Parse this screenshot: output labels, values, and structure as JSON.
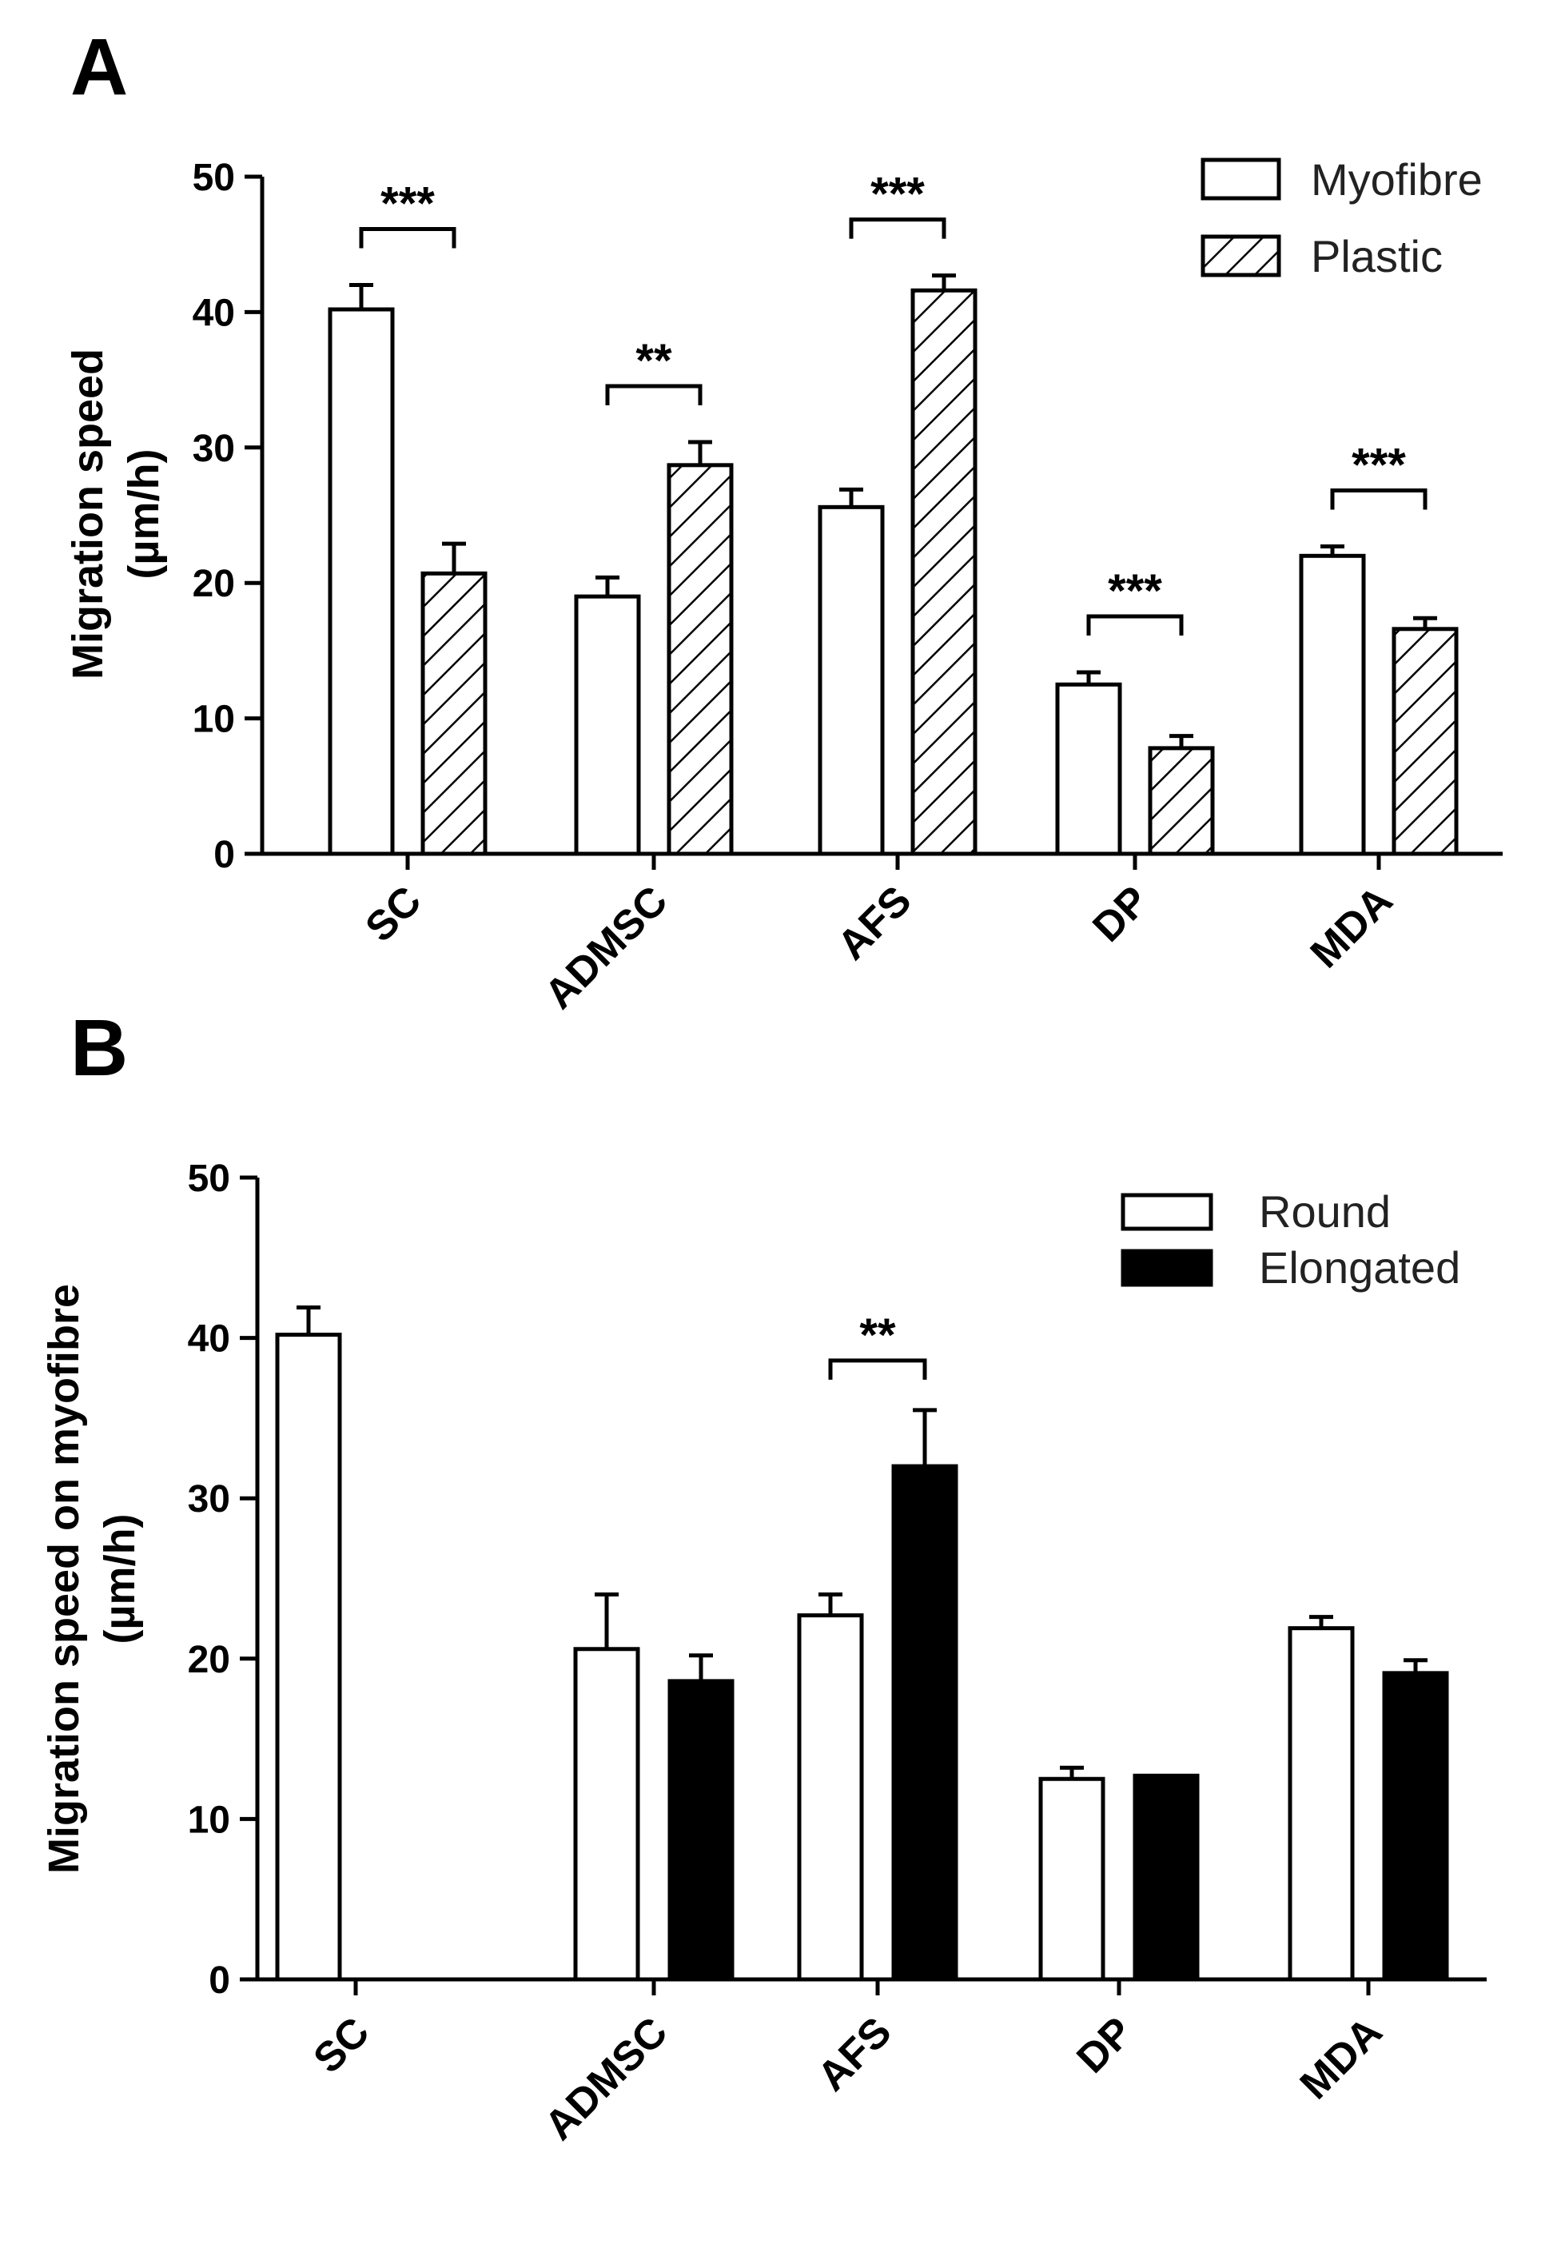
{
  "chart_data": [
    {
      "panel": "A",
      "type": "bar",
      "categories": [
        "SC",
        "ADMSC",
        "AFS",
        "DP",
        "MDA"
      ],
      "series": [
        {
          "name": "Myofibre",
          "pattern": "white",
          "values": [
            40.2,
            19.0,
            25.6,
            12.5,
            22.0
          ],
          "errors": [
            1.8,
            1.4,
            1.3,
            0.9,
            0.7
          ]
        },
        {
          "name": "Plastic",
          "pattern": "hatched",
          "values": [
            20.7,
            28.7,
            41.6,
            7.8,
            16.6
          ],
          "errors": [
            2.2,
            1.7,
            1.1,
            0.9,
            0.8
          ]
        }
      ],
      "significance": [
        "***",
        "**",
        "***",
        "***",
        "***"
      ],
      "ylabel": "Migration speed",
      "yunit": "(µm/h)",
      "ylim": [
        0,
        50
      ],
      "yticks": [
        "0",
        "10",
        "20",
        "30",
        "40",
        "50"
      ],
      "legend": "top-right",
      "grid": false
    },
    {
      "panel": "B",
      "type": "bar",
      "categories": [
        "SC",
        "ADMSC",
        "AFS",
        "DP",
        "MDA"
      ],
      "series": [
        {
          "name": "Round",
          "pattern": "white",
          "values": [
            40.2,
            20.6,
            22.7,
            12.5,
            21.9
          ],
          "errors": [
            1.7,
            3.4,
            1.3,
            0.7,
            0.7
          ]
        },
        {
          "name": "Elongated",
          "pattern": "black",
          "values": [
            null,
            18.6,
            32.0,
            12.7,
            19.1
          ],
          "errors": [
            null,
            1.6,
            3.5,
            0,
            0.8
          ]
        }
      ],
      "significance": [
        "",
        "",
        "**",
        "",
        ""
      ],
      "ylabel": "Migration speed on myofibre",
      "yunit": "(µm/h)",
      "ylim": [
        0,
        50
      ],
      "yticks": [
        "0",
        "10",
        "20",
        "30",
        "40",
        "50"
      ],
      "legend": "top-right",
      "grid": false
    }
  ],
  "colors": {
    "ink": "#000000",
    "fill_white": "#ffffff",
    "fill_black": "#000000"
  }
}
